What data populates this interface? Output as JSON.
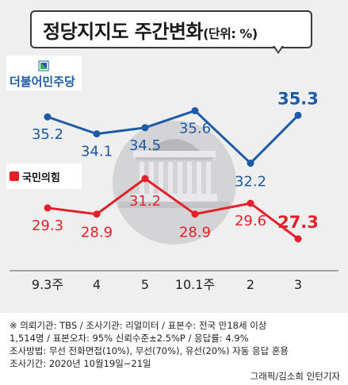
{
  "title": {
    "main": "정당지지도 주간변화",
    "unit": "(단위: %)"
  },
  "legend": {
    "democratic": {
      "name": "더불어민주당",
      "color": "#1d5aa8"
    },
    "ppp": {
      "name": "국민의힘",
      "color": "#e4212b"
    }
  },
  "chart_data": {
    "type": "line",
    "categories": [
      "9.3주",
      "4",
      "5",
      "10.1주",
      "2",
      "3"
    ],
    "series": [
      {
        "name": "더불어민주당",
        "color": "#1d5aa8",
        "values": [
          35.2,
          34.1,
          34.5,
          35.6,
          32.2,
          35.3
        ]
      },
      {
        "name": "국민의힘",
        "color": "#e4212b",
        "values": [
          29.3,
          28.9,
          31.2,
          28.9,
          29.6,
          27.3
        ]
      }
    ],
    "labels": {
      "democratic": [
        "35.2",
        "34.1",
        "34.5",
        "35.6",
        "32.2",
        "35.3"
      ],
      "ppp": [
        "29.3",
        "28.9",
        "31.2",
        "28.9",
        "29.6",
        "27.3"
      ]
    },
    "legend_position": "left",
    "grid": false
  },
  "notes": [
    "※ 의뢰기관: TBS / 조사기관: 리얼미터 / 표본수: 전국 만18세 이상",
    "1,514명 / 표본오차: 95% 신뢰수준±2.5%P / 응답률: 4.9%",
    "조사방법: 무선 전화면접(10%), 무선(70%), 유선(20%) 자동 응답 혼용",
    "조사기간: 2020년 10월19일~21일"
  ],
  "credit": "그래픽/김소희 인턴기자"
}
